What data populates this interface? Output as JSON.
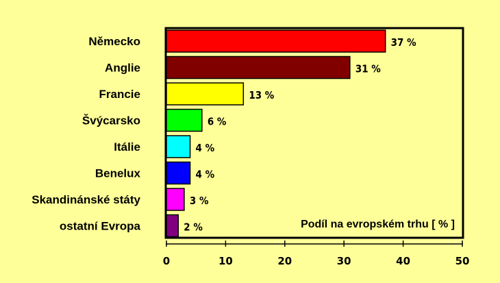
{
  "chart_data": {
    "type": "bar",
    "orientation": "horizontal",
    "categories": [
      "Německo",
      "Anglie",
      "Francie",
      "Švýcarsko",
      "Itálie",
      "Benelux",
      "Skandinánské státy",
      "ostatní Evropa"
    ],
    "values": [
      37,
      31,
      13,
      6,
      4,
      4,
      3,
      2
    ],
    "data_labels": [
      "37 %",
      "31 %",
      "13 %",
      "6 %",
      "4 %",
      "4 %",
      "3 %",
      "2 %"
    ],
    "bar_colors": [
      "#FF0000",
      "#800000",
      "#FFFF00",
      "#00FF00",
      "#00FFFF",
      "#0000FF",
      "#FF00FF",
      "#800080"
    ],
    "xlim": [
      0,
      50
    ],
    "xticks": [
      0,
      10,
      20,
      30,
      40,
      50
    ],
    "legend_text": "Podíl na evropském trhu [ % ]",
    "legend_position": "bottom-right",
    "grid": false,
    "background_color": "#FFFF99",
    "plot_background_color": "#FFFF99"
  }
}
